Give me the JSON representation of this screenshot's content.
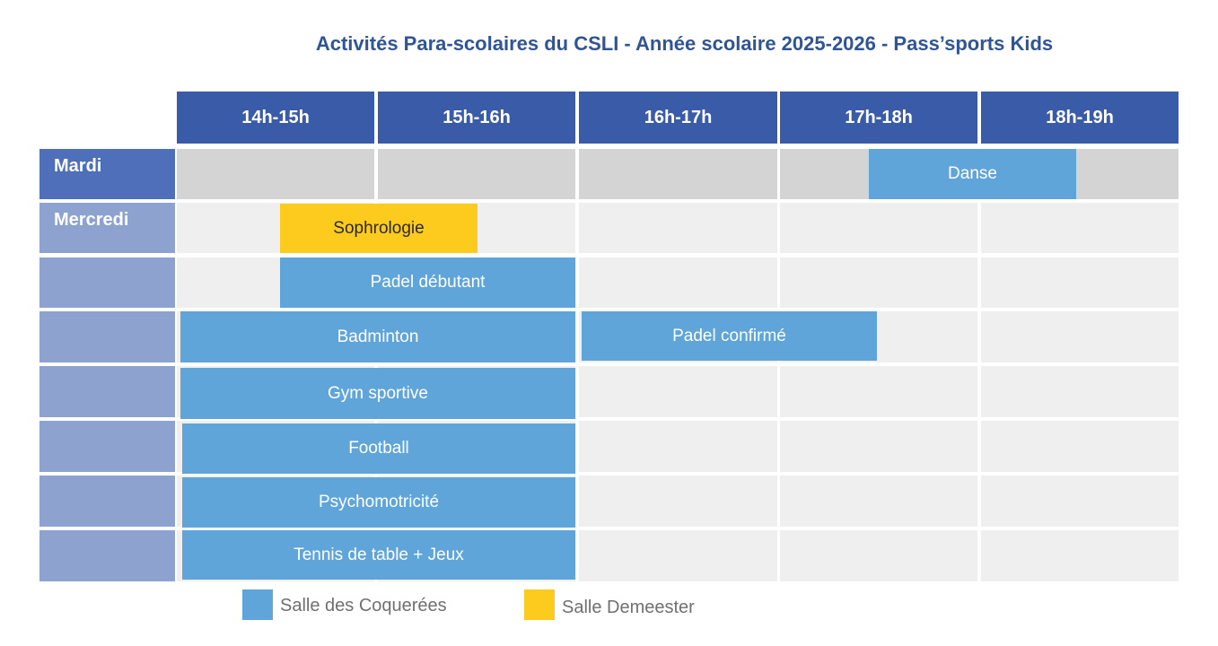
{
  "title": "Activités Para-scolaires du CSLI - Année scolaire 2025-2026 - Pass’sports Kids",
  "time_slots": [
    "14h-15h",
    "15h-16h",
    "16h-17h",
    "17h-18h",
    "18h-19h"
  ],
  "days": [
    {
      "label": "Mardi"
    },
    {
      "label": "Mercredi"
    }
  ],
  "activities": [
    {
      "name": "Danse",
      "day": "Mardi",
      "start": "17h30",
      "end": "18h45",
      "room": "Salle des Coquerées"
    },
    {
      "name": "Sophrologie",
      "day": "Mercredi",
      "start": "14h30",
      "end": "15h30",
      "room": "Salle Demeester"
    },
    {
      "name": "Padel débutant",
      "day": "Mercredi",
      "start": "14h30",
      "end": "16h00",
      "room": "Salle des Coquerées"
    },
    {
      "name": "Badminton",
      "day": "Mercredi",
      "start": "14h00",
      "end": "16h00",
      "room": "Salle des Coquerées"
    },
    {
      "name": "Padel confirmé",
      "day": "Mercredi",
      "start": "16h00",
      "end": "17h30",
      "room": "Salle des Coquerées"
    },
    {
      "name": "Gym sportive",
      "day": "Mercredi",
      "start": "14h00",
      "end": "16h00",
      "room": "Salle des Coquerées"
    },
    {
      "name": "Football",
      "day": "Mercredi",
      "start": "14h00",
      "end": "16h00",
      "room": "Salle des Coquerées"
    },
    {
      "name": "Psychomotricité",
      "day": "Mercredi",
      "start": "14h00",
      "end": "16h00",
      "room": "Salle des Coquerées"
    },
    {
      "name": "Tennis de table + Jeux",
      "day": "Mercredi",
      "start": "14h00",
      "end": "16h00",
      "room": "Salle des Coquerées"
    }
  ],
  "legend": [
    {
      "label": "Salle des Coquerées",
      "color": "#5fa5da"
    },
    {
      "label": "Salle Demeester",
      "color": "#fdcb1d"
    }
  ],
  "colors": {
    "header": "#3a5ba8",
    "day_label_primary": "#4f6fba",
    "day_label_secondary": "#8ea2d0",
    "grid_row_mardi": "#d4d4d4",
    "grid_row_mercredi": "#efefef",
    "title": "#2f5597"
  }
}
